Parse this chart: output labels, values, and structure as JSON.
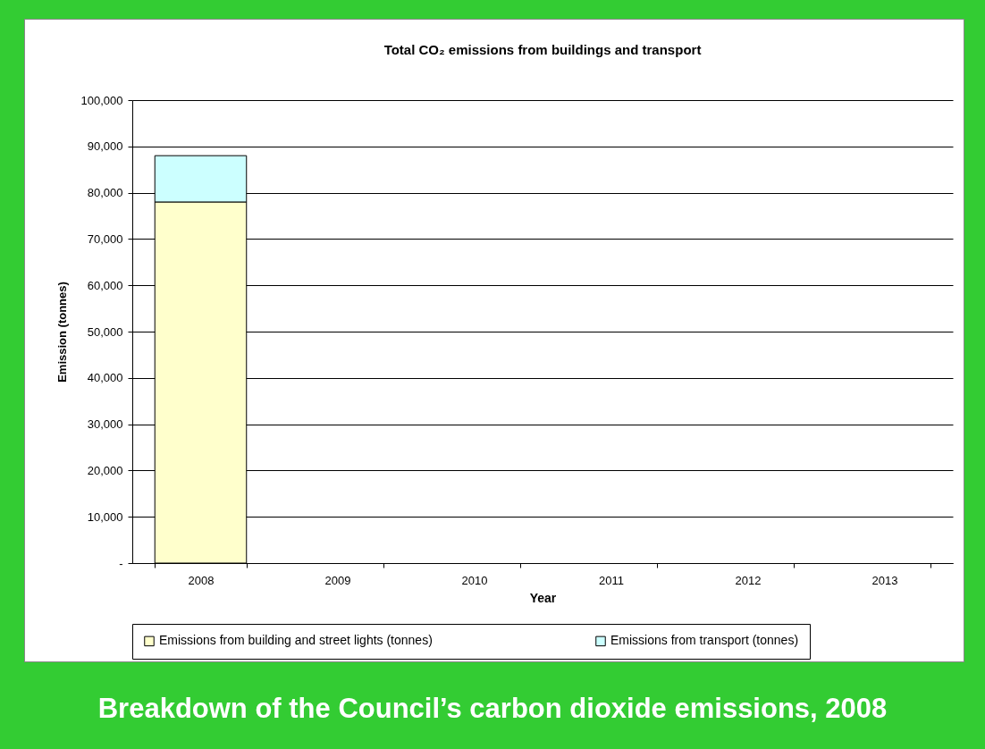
{
  "chart_data": {
    "type": "bar",
    "title": "Total CO₂ emissions from buildings and transport",
    "xlabel": "Year",
    "ylabel": "Emission (tonnes)",
    "categories": [
      "2008",
      "2009",
      "2010",
      "2011",
      "2012",
      "2013"
    ],
    "series": [
      {
        "name": "Emissions from building and street lights (tonnes)",
        "color": "#ffffcc",
        "values": [
          78000,
          null,
          null,
          null,
          null,
          null
        ]
      },
      {
        "name": "Emissions from transport (tonnes)",
        "color": "#ccffff",
        "values": [
          10000,
          null,
          null,
          null,
          null,
          null
        ]
      }
    ],
    "stacked": true,
    "ylim": [
      0,
      100000
    ],
    "yticks": [
      {
        "value": 0,
        "label": "-"
      },
      {
        "value": 10000,
        "label": "10,000"
      },
      {
        "value": 20000,
        "label": "20,000"
      },
      {
        "value": 30000,
        "label": "30,000"
      },
      {
        "value": 40000,
        "label": "40,000"
      },
      {
        "value": 50000,
        "label": "50,000"
      },
      {
        "value": 60000,
        "label": "60,000"
      },
      {
        "value": 70000,
        "label": "70,000"
      },
      {
        "value": 80000,
        "label": "80,000"
      },
      {
        "value": 90000,
        "label": "90,000"
      },
      {
        "value": 100000,
        "label": "100,000"
      }
    ],
    "grid": "y",
    "legend": "bottom",
    "annotations": [
      "Breakdown of the Council’s carbon dioxide emissions, 2008"
    ]
  }
}
